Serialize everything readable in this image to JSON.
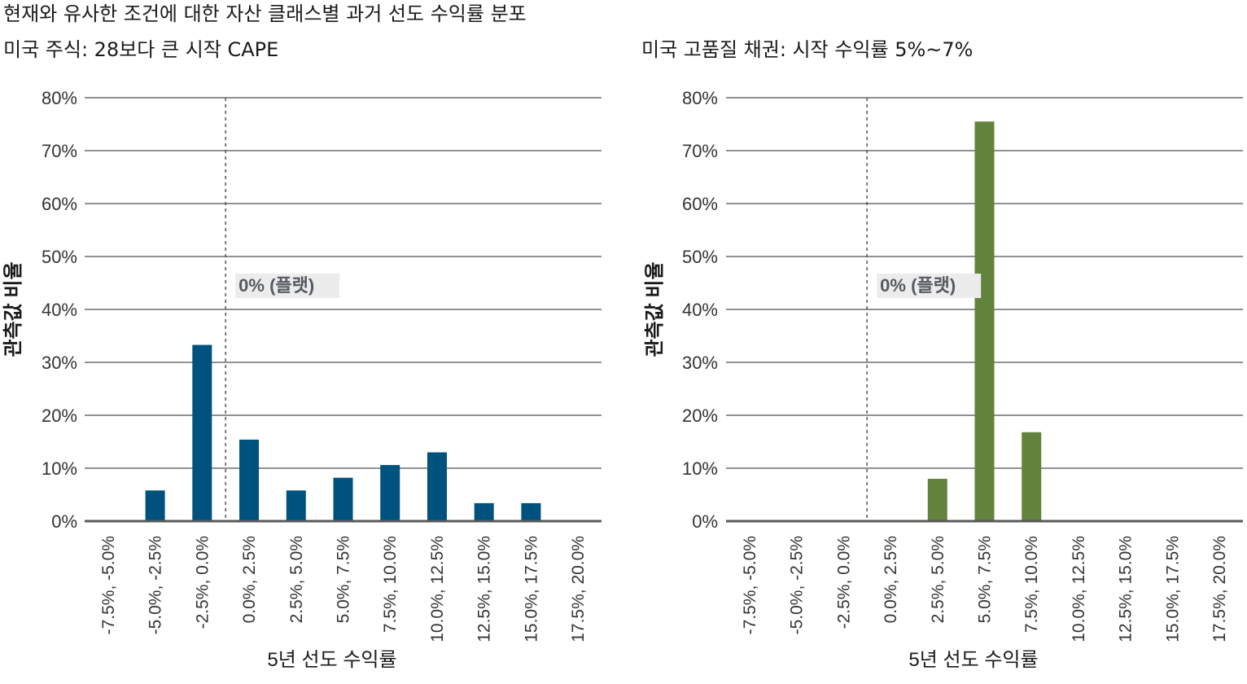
{
  "title": "현재와 유사한 조건에 대한 자산 클래스별 과거 선도 수익률 분포",
  "chart_data": [
    {
      "type": "bar",
      "subtitle": "미국 주식: 28보다 큰 시작 CAPE",
      "xlabel": "5년 선도 수익률",
      "ylabel": "관측값 비율",
      "ylim": [
        0,
        80
      ],
      "yticks": [
        "0%",
        "10%",
        "20%",
        "30%",
        "40%",
        "50%",
        "60%",
        "70%",
        "80%"
      ],
      "categories": [
        "-7.5%, -5.0%",
        "-5.0%, -2.5%",
        "-2.5%, 0.0%",
        "0.0%, 2.5%",
        "2.5%, 5.0%",
        "5.0%, 7.5%",
        "7.5%, 10.0%",
        "10.0%, 12.5%",
        "12.5%, 15.0%",
        "15.0%, 17.5%",
        "17.5%, 20.0%"
      ],
      "values": [
        0,
        5.8,
        33.3,
        15.4,
        5.8,
        8.2,
        10.6,
        13.0,
        3.4,
        3.4,
        0
      ],
      "color": "#00527e",
      "reference_line": {
        "x_between": [
          "-2.5%, 0.0%",
          "0.0%, 2.5%"
        ],
        "label": "0% (플랫)"
      },
      "grid": true
    },
    {
      "type": "bar",
      "subtitle": "미국 고품질 채권: 시작 수익률 5%~7%",
      "xlabel": "5년 선도 수익률",
      "ylabel": "관측값 비율",
      "ylim": [
        0,
        80
      ],
      "yticks": [
        "0%",
        "10%",
        "20%",
        "30%",
        "40%",
        "50%",
        "60%",
        "70%",
        "80%"
      ],
      "categories": [
        "-7.5%, -5.0%",
        "-5.0%, -2.5%",
        "-2.5%, 0.0%",
        "0.0%, 2.5%",
        "2.5%, 5.0%",
        "5.0%, 7.5%",
        "7.5%, 10.0%",
        "10.0%, 12.5%",
        "12.5%, 15.0%",
        "15.0%, 17.5%",
        "17.5%, 20.0%"
      ],
      "values": [
        0,
        0,
        0,
        0,
        8.0,
        75.5,
        16.8,
        0,
        0,
        0,
        0
      ],
      "color": "#62833b",
      "reference_line": {
        "x_between": [
          "-2.5%, 0.0%",
          "0.0%, 2.5%"
        ],
        "label": "0% (플랫)"
      },
      "grid": true
    }
  ]
}
